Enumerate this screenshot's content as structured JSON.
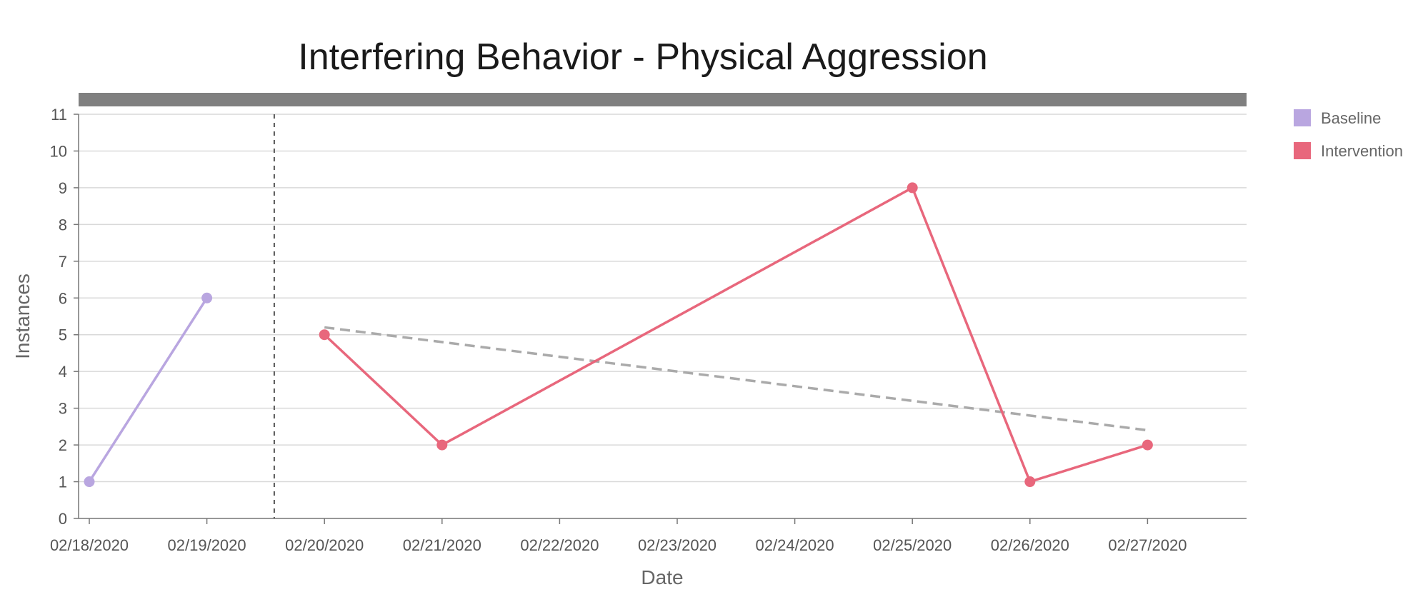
{
  "chart_data": {
    "type": "line",
    "title": "Interfering Behavior - Physical Aggression",
    "xlabel": "Date",
    "ylabel": "Instances",
    "ylim": [
      0,
      11
    ],
    "yticks": [
      0,
      1,
      2,
      3,
      4,
      5,
      6,
      7,
      8,
      9,
      10,
      11
    ],
    "categories": [
      "02/18/2020",
      "02/19/2020",
      "02/20/2020",
      "02/21/2020",
      "02/22/2020",
      "02/23/2020",
      "02/24/2020",
      "02/25/2020",
      "02/26/2020",
      "02/27/2020"
    ],
    "grid": true,
    "legend_position": "right",
    "phase_change_between": [
      "02/19/2020",
      "02/20/2020"
    ],
    "series": [
      {
        "name": "Baseline",
        "color": "#b9a6e0",
        "points": [
          {
            "x": "02/18/2020",
            "y": 1
          },
          {
            "x": "02/19/2020",
            "y": 6
          }
        ]
      },
      {
        "name": "Intervention",
        "color": "#e8677c",
        "points": [
          {
            "x": "02/20/2020",
            "y": 5
          },
          {
            "x": "02/21/2020",
            "y": 2
          },
          {
            "x": "02/25/2020",
            "y": 9
          },
          {
            "x": "02/26/2020",
            "y": 1
          },
          {
            "x": "02/27/2020",
            "y": 2
          }
        ]
      }
    ],
    "trendline": {
      "color": "#aaaaaa",
      "from": {
        "x": "02/20/2020",
        "y": 5.2
      },
      "to": {
        "x": "02/27/2020",
        "y": 2.4
      }
    },
    "top_band_color": "#808080"
  }
}
